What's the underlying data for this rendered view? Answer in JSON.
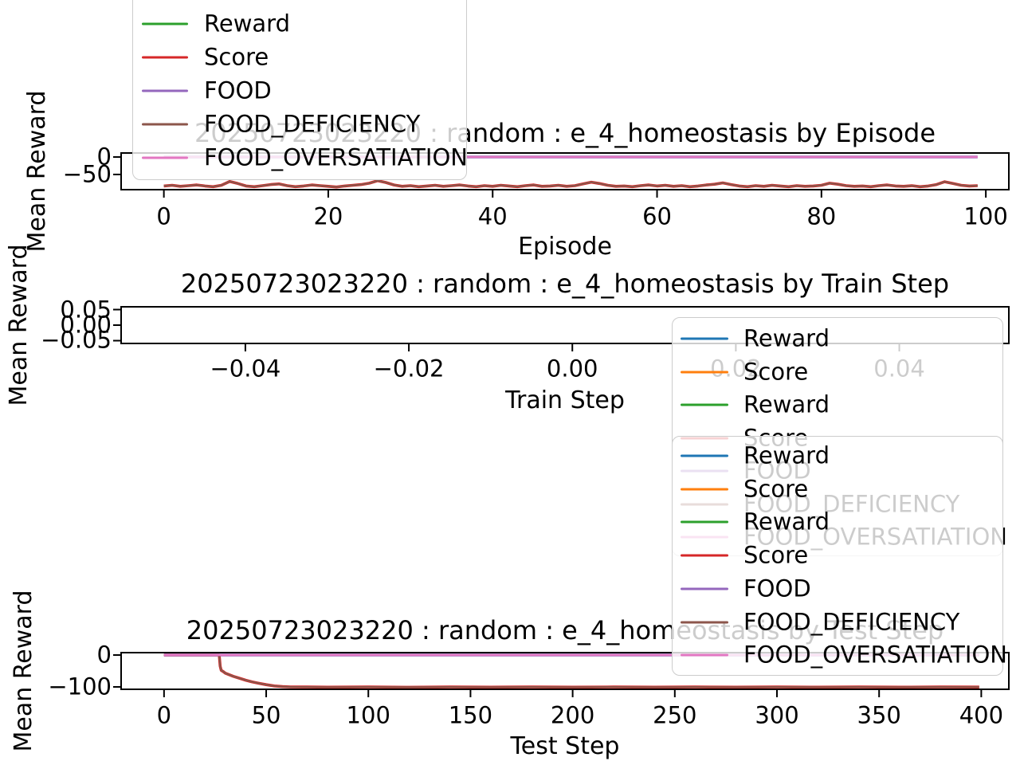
{
  "background": "#ffffff",
  "text_color": "#000000",
  "palette": {
    "blue": "#1f77b4",
    "orange": "#ff7f0e",
    "green": "#2ca02c",
    "red": "#d62728",
    "purple": "#9467bd",
    "brown": "#8c564b",
    "pink": "#e377c2"
  },
  "chart_data": [
    {
      "type": "line",
      "title": "20250723023220 : random : e_4_homeostasis by Episode",
      "xlabel": "Episode",
      "ylabel": "Mean Reward",
      "xlim": [
        -5.2,
        102.8
      ],
      "ylim": [
        -93.5,
        11.5
      ],
      "xticks": [
        0,
        20,
        40,
        60,
        80,
        100
      ],
      "xtick_labels": [
        "0",
        "20",
        "40",
        "60",
        "80",
        "100"
      ],
      "yticks": [
        0,
        -50
      ],
      "ytick_labels": [
        "0",
        "−50"
      ],
      "grid": false,
      "series": [
        {
          "name": "Reward",
          "color": "green",
          "x_start": 0,
          "y": [
            -83,
            -81,
            -84,
            -82,
            -80,
            -83,
            -85,
            -81,
            -70,
            -76,
            -83,
            -85,
            -82,
            -79,
            -77,
            -82,
            -85,
            -83,
            -80,
            -82,
            -84,
            -86,
            -83,
            -81,
            -79,
            -75,
            -68,
            -73,
            -80,
            -84,
            -82,
            -85,
            -83,
            -81,
            -84,
            -82,
            -80,
            -83,
            -85,
            -82,
            -84,
            -81,
            -83,
            -85,
            -82,
            -80,
            -84,
            -83,
            -81,
            -84,
            -82,
            -77,
            -72,
            -76,
            -81,
            -84,
            -83,
            -85,
            -82,
            -80,
            -83,
            -81,
            -84,
            -82,
            -85,
            -83,
            -80,
            -78,
            -74,
            -79,
            -83,
            -85,
            -82,
            -84,
            -81,
            -83,
            -85,
            -82,
            -84,
            -83,
            -81,
            -75,
            -78,
            -82,
            -84,
            -83,
            -85,
            -82,
            -80,
            -83,
            -84,
            -82,
            -85,
            -83,
            -79,
            -71,
            -76,
            -81,
            -83,
            -82
          ]
        },
        {
          "name": "Score",
          "color": "red",
          "x_start": 0,
          "y": [
            -83,
            -81,
            -84,
            -82,
            -80,
            -83,
            -85,
            -81,
            -70,
            -76,
            -83,
            -85,
            -82,
            -79,
            -77,
            -82,
            -85,
            -83,
            -80,
            -82,
            -84,
            -86,
            -83,
            -81,
            -79,
            -75,
            -68,
            -73,
            -80,
            -84,
            -82,
            -85,
            -83,
            -81,
            -84,
            -82,
            -80,
            -83,
            -85,
            -82,
            -84,
            -81,
            -83,
            -85,
            -82,
            -80,
            -84,
            -83,
            -81,
            -84,
            -82,
            -77,
            -72,
            -76,
            -81,
            -84,
            -83,
            -85,
            -82,
            -80,
            -83,
            -81,
            -84,
            -82,
            -85,
            -83,
            -80,
            -78,
            -74,
            -79,
            -83,
            -85,
            -82,
            -84,
            -81,
            -83,
            -85,
            -82,
            -84,
            -83,
            -81,
            -75,
            -78,
            -82,
            -84,
            -83,
            -85,
            -82,
            -80,
            -83,
            -84,
            -82,
            -85,
            -83,
            -79,
            -71,
            -76,
            -81,
            -83,
            -82
          ]
        },
        {
          "name": "FOOD",
          "color": "purple",
          "const": 0,
          "x_range": [
            0,
            99
          ]
        },
        {
          "name": "FOOD_DEFICIENCY",
          "color": "brown",
          "x_start": 0,
          "y": [
            -83,
            -81,
            -84,
            -82,
            -80,
            -83,
            -85,
            -81,
            -70,
            -76,
            -83,
            -85,
            -82,
            -79,
            -77,
            -82,
            -85,
            -83,
            -80,
            -82,
            -84,
            -86,
            -83,
            -81,
            -79,
            -75,
            -68,
            -73,
            -80,
            -84,
            -82,
            -85,
            -83,
            -81,
            -84,
            -82,
            -80,
            -83,
            -85,
            -82,
            -84,
            -81,
            -83,
            -85,
            -82,
            -80,
            -84,
            -83,
            -81,
            -84,
            -82,
            -77,
            -72,
            -76,
            -81,
            -84,
            -83,
            -85,
            -82,
            -80,
            -83,
            -81,
            -84,
            -82,
            -85,
            -83,
            -80,
            -78,
            -74,
            -79,
            -83,
            -85,
            -82,
            -84,
            -81,
            -83,
            -85,
            -82,
            -84,
            -83,
            -81,
            -75,
            -78,
            -82,
            -84,
            -83,
            -85,
            -82,
            -80,
            -83,
            -84,
            -82,
            -85,
            -83,
            -79,
            -71,
            -76,
            -81,
            -83,
            -82
          ]
        },
        {
          "name": "FOOD_OVERSATIATION",
          "color": "pink",
          "const": 0,
          "x_range": [
            0,
            99
          ]
        }
      ]
    },
    {
      "type": "line",
      "title": "20250723023220 : random : e_4_homeostasis by Train Step",
      "xlabel": "Train Step",
      "ylabel": "Mean Reward",
      "xlim": [
        -0.0552,
        0.0534
      ],
      "ylim": [
        -0.059,
        0.059
      ],
      "xticks": [
        -0.04,
        -0.02,
        0.0,
        0.02,
        0.04
      ],
      "xtick_labels": [
        "−0.04",
        "−0.02",
        "0.00",
        "0.02",
        "0.04"
      ],
      "yticks": [
        0.05,
        0.0,
        -0.05
      ],
      "ytick_labels": [
        "0.05",
        "0.00",
        "−0.05"
      ],
      "grid": false,
      "series": []
    },
    {
      "type": "line",
      "title": "20250723023220 : random : e_4_homeostasis by Test Step",
      "xlabel": "Test Step",
      "ylabel": "Mean Reward",
      "xlim": [
        -21.0,
        413.5
      ],
      "ylim": [
        -107.5,
        7.5
      ],
      "xticks": [
        0,
        50,
        100,
        150,
        200,
        250,
        300,
        350,
        400
      ],
      "xtick_labels": [
        "0",
        "50",
        "100",
        "150",
        "200",
        "250",
        "300",
        "350",
        "400"
      ],
      "yticks": [
        0,
        -100
      ],
      "ytick_labels": [
        "0",
        "−100"
      ],
      "grid": false,
      "series": [
        {
          "name": "Reward",
          "color": "blue",
          "const": 0,
          "x_range": [
            0,
            399
          ]
        },
        {
          "name": "Score",
          "color": "orange",
          "const": 0,
          "x_range": [
            0,
            399
          ]
        },
        {
          "name": "Reward",
          "color": "green",
          "const": 0,
          "x_range": [
            0,
            399
          ]
        },
        {
          "name": "Score",
          "color": "red",
          "x": [
            0,
            27,
            27.5,
            28,
            29,
            30,
            32,
            34,
            36,
            38,
            40,
            43,
            46,
            50,
            54,
            58,
            62,
            70,
            80,
            100,
            120,
            140,
            160,
            180,
            200,
            220,
            240,
            260,
            280,
            300,
            320,
            340,
            360,
            380,
            399
          ],
          "y": [
            0,
            0,
            -35,
            -48,
            -52,
            -57,
            -62,
            -67,
            -71,
            -75,
            -79,
            -84,
            -88,
            -93,
            -97,
            -99,
            -100,
            -100.3,
            -100.8,
            -100.2,
            -100.9,
            -100.3,
            -100.8,
            -100.2,
            -100.7,
            -100.3,
            -100.8,
            -100.2,
            -100.7,
            -100.3,
            -100.8,
            -100.2,
            -100.7,
            -100.3,
            -100.5
          ]
        },
        {
          "name": "FOOD",
          "color": "purple",
          "const": 0,
          "x_range": [
            0,
            399
          ]
        },
        {
          "name": "FOOD_DEFICIENCY",
          "color": "brown",
          "x": [
            0,
            27,
            27.5,
            28,
            29,
            30,
            32,
            34,
            36,
            38,
            40,
            43,
            46,
            50,
            54,
            58,
            62,
            70,
            80,
            100,
            120,
            140,
            160,
            180,
            200,
            220,
            240,
            260,
            280,
            300,
            320,
            340,
            360,
            380,
            399
          ],
          "y": [
            0,
            0,
            -35,
            -48,
            -52,
            -57,
            -62,
            -67,
            -71,
            -75,
            -79,
            -84,
            -88,
            -93,
            -97,
            -99,
            -100,
            -100.3,
            -100.8,
            -100.2,
            -100.9,
            -100.3,
            -100.8,
            -100.2,
            -100.7,
            -100.3,
            -100.8,
            -100.2,
            -100.7,
            -100.3,
            -100.8,
            -100.2,
            -100.7,
            -100.3,
            -100.5
          ]
        },
        {
          "name": "FOOD_OVERSATIATION",
          "color": "pink",
          "const": 0,
          "x_range": [
            0,
            399
          ]
        }
      ]
    }
  ],
  "legends": [
    {
      "for_chart": "Train Step",
      "entries": [
        {
          "label": "Reward",
          "color": "blue"
        },
        {
          "label": "Score",
          "color": "orange"
        },
        {
          "label": "Reward",
          "color": "green"
        },
        {
          "label": "Score",
          "color": "red"
        },
        {
          "label": "FOOD",
          "color": "purple"
        },
        {
          "label": "FOOD_DEFICIENCY",
          "color": "brown"
        },
        {
          "label": "FOOD_OVERSATIATION",
          "color": "pink"
        }
      ]
    },
    {
      "for_chart": "Test Step",
      "entries": [
        {
          "label": "Reward",
          "color": "blue"
        },
        {
          "label": "Score",
          "color": "orange"
        },
        {
          "label": "Reward",
          "color": "green"
        },
        {
          "label": "Score",
          "color": "red"
        },
        {
          "label": "FOOD",
          "color": "purple"
        },
        {
          "label": "FOOD_DEFICIENCY",
          "color": "brown"
        },
        {
          "label": "FOOD_OVERSATIATION",
          "color": "pink"
        }
      ]
    },
    {
      "for_chart": "Episode",
      "entries": [
        {
          "label": "Reward",
          "color": "green"
        },
        {
          "label": "Score",
          "color": "red"
        },
        {
          "label": "FOOD",
          "color": "purple"
        },
        {
          "label": "FOOD_DEFICIENCY",
          "color": "brown"
        },
        {
          "label": "FOOD_OVERSATIATION",
          "color": "pink"
        }
      ]
    }
  ]
}
